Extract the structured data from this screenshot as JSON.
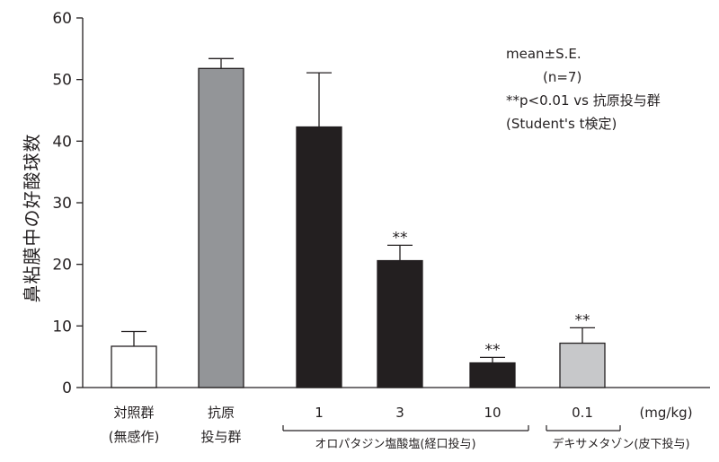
{
  "chart_data": {
    "type": "bar",
    "ylabel": "鼻粘膜中の好酸球数",
    "ylim": [
      0,
      60
    ],
    "yticks": [
      0,
      10,
      20,
      30,
      40,
      50,
      60
    ],
    "unit_label": "(mg/kg)",
    "categories": [
      {
        "line1": "対照群",
        "line2": "(無感作)"
      },
      {
        "line1": "抗原",
        "line2": "投与群"
      },
      {
        "line1": "1",
        "line2": ""
      },
      {
        "line1": "3",
        "line2": ""
      },
      {
        "line1": "10",
        "line2": ""
      },
      {
        "line1": "0.1",
        "line2": ""
      }
    ],
    "values": [
      6.7,
      51.8,
      42.3,
      20.6,
      4.0,
      7.2
    ],
    "errors": [
      2.4,
      1.6,
      8.8,
      2.5,
      0.9,
      2.5
    ],
    "fill_colors": [
      "#ffffff",
      "#939598",
      "#231f20",
      "#231f20",
      "#231f20",
      "#c7c8ca"
    ],
    "significance": [
      "",
      "",
      "",
      "**",
      "**",
      "**"
    ],
    "groups": [
      {
        "label": "オロパタジン塩酸塩(経口投与)",
        "from": 2,
        "to": 4
      },
      {
        "label": "デキサメタゾン(皮下投与)",
        "from": 5,
        "to": 5
      }
    ],
    "annotations": {
      "line1": "mean±S.E.",
      "line2": "(n=7)",
      "line3": "**p<0.01 vs 抗原投与群",
      "line4": "(Student's t検定)"
    }
  }
}
